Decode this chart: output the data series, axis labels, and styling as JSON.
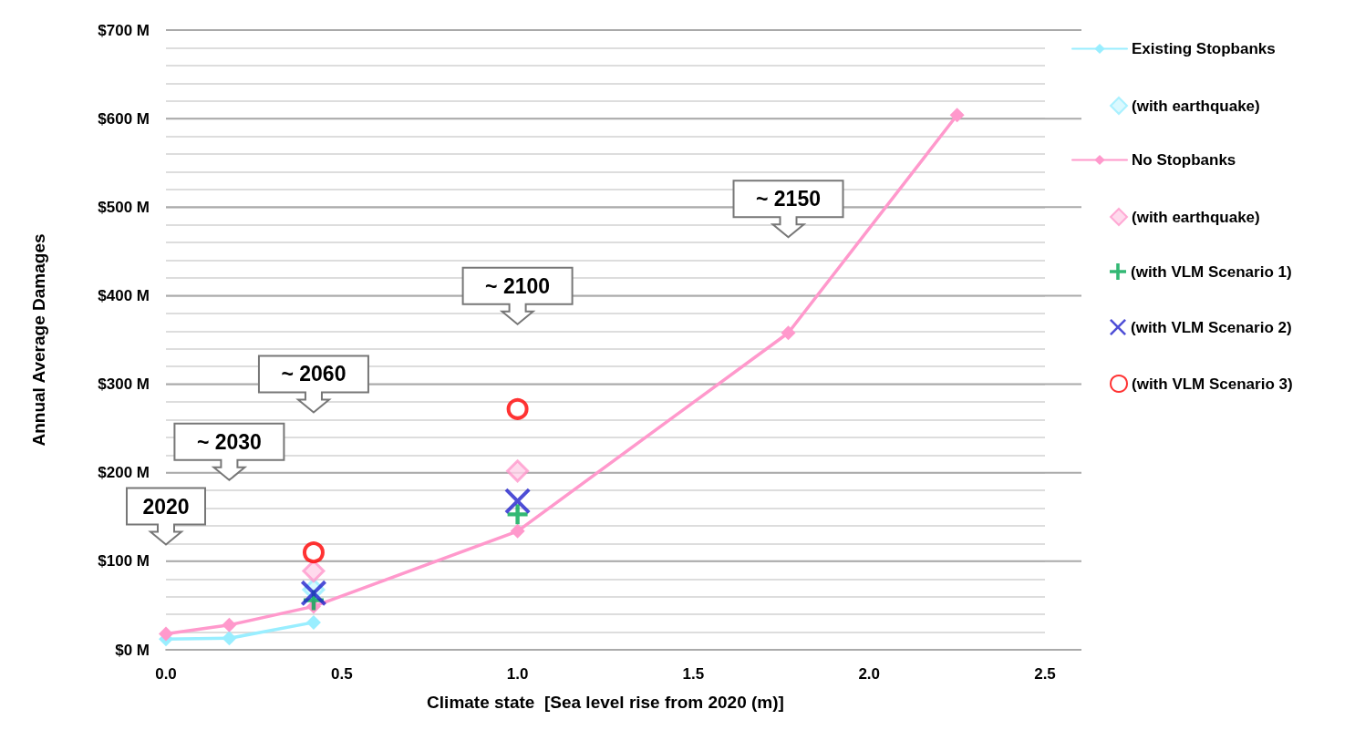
{
  "chart_data": {
    "type": "line",
    "xlabel": "Climate state  [Sea level rise from 2020 (m)]",
    "ylabel": "Annual Average Damages",
    "xlim": [
      0,
      2.5
    ],
    "xticks": [
      {
        "value": 0,
        "label": "0.0"
      },
      {
        "value": 0.5,
        "label": "0.5"
      },
      {
        "value": 1,
        "label": "1.0"
      },
      {
        "value": 1.5,
        "label": "1.5"
      },
      {
        "value": 2,
        "label": "2.0"
      },
      {
        "value": 2.5,
        "label": "2.5"
      }
    ],
    "ylim": [
      0,
      700
    ],
    "yticks": [
      {
        "value": 0,
        "label": "$0 M"
      },
      {
        "value": 20,
        "label": null
      },
      {
        "value": 40,
        "label": null
      },
      {
        "value": 60,
        "label": null
      },
      {
        "value": 80,
        "label": null
      },
      {
        "value": 100,
        "label": "$100 M"
      },
      {
        "value": 120,
        "label": null
      },
      {
        "value": 140,
        "label": null
      },
      {
        "value": 160,
        "label": null
      },
      {
        "value": 180,
        "label": null
      },
      {
        "value": 200,
        "label": "$200 M"
      },
      {
        "value": 220,
        "label": null
      },
      {
        "value": 240,
        "label": null
      },
      {
        "value": 260,
        "label": null
      },
      {
        "value": 280,
        "label": null
      },
      {
        "value": 300,
        "label": "$300 M"
      },
      {
        "value": 320,
        "label": null
      },
      {
        "value": 340,
        "label": null
      },
      {
        "value": 360,
        "label": null
      },
      {
        "value": 380,
        "label": null
      },
      {
        "value": 400,
        "label": "$400 M"
      },
      {
        "value": 420,
        "label": null
      },
      {
        "value": 440,
        "label": null
      },
      {
        "value": 460,
        "label": null
      },
      {
        "value": 480,
        "label": null
      },
      {
        "value": 500,
        "label": "$500 M"
      },
      {
        "value": 520,
        "label": null
      },
      {
        "value": 540,
        "label": null
      },
      {
        "value": 560,
        "label": null
      },
      {
        "value": 580,
        "label": null
      },
      {
        "value": 600,
        "label": "$600 M"
      },
      {
        "value": 620,
        "label": null
      },
      {
        "value": 640,
        "label": null
      },
      {
        "value": 660,
        "label": null
      },
      {
        "value": 680,
        "label": null
      },
      {
        "value": 700,
        "label": "$700 M"
      }
    ],
    "grid": "y",
    "legend": "right",
    "line_style": "solid",
    "series": [
      {
        "name": "Existing Stopbanks",
        "type": "line",
        "marker": "diamond",
        "color": "#99eeff",
        "x": [
          0,
          0.18,
          0.42
        ],
        "values": [
          12,
          13,
          31
        ]
      },
      {
        "name": "(with earthquake)",
        "type": "scatter",
        "marker": "diamond",
        "color": "#99eeff",
        "x": [
          0.42
        ],
        "values": [
          68
        ]
      },
      {
        "name": "No Stopbanks",
        "type": "line",
        "marker": "diamond",
        "color": "#ff99cc",
        "x": [
          0,
          0.18,
          0.42,
          1.0,
          1.77,
          2.25
        ],
        "values": [
          18,
          28,
          49,
          134,
          358,
          604
        ]
      },
      {
        "name": "(with earthquake)",
        "type": "scatter",
        "marker": "diamond",
        "color": "#ff99cc",
        "x": [
          0.42,
          1.0
        ],
        "values": [
          89,
          202
        ]
      },
      {
        "name": "(with VLM Scenario 1)",
        "type": "scatter",
        "marker": "plus",
        "color": "#00a651",
        "x": [
          0.42,
          1.0
        ],
        "values": [
          56,
          153
        ]
      },
      {
        "name": "(with VLM Scenario 2)",
        "type": "scatter",
        "marker": "cross",
        "color": "#2222cc",
        "x": [
          0.42,
          1.0
        ],
        "values": [
          64,
          168
        ]
      },
      {
        "name": "(with VLM Scenario 3)",
        "type": "scatter",
        "marker": "circle",
        "color": "#ff0000",
        "x": [
          0.42,
          1.0
        ],
        "values": [
          110,
          272
        ]
      }
    ],
    "annotations": [
      "2020",
      "~ 2030",
      "~ 2060",
      "~ 2100",
      "~ 2150"
    ]
  }
}
